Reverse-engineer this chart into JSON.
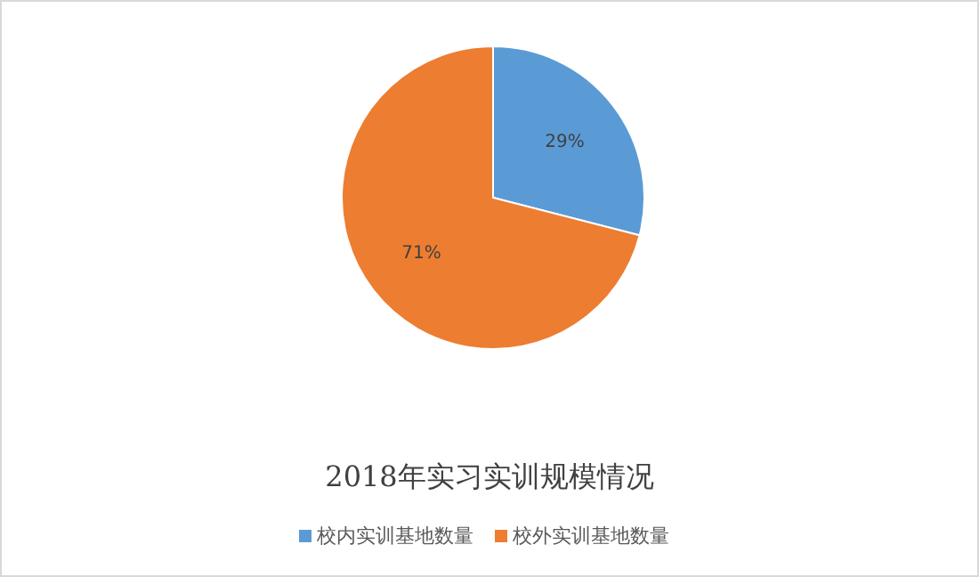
{
  "chart_data": {
    "type": "pie",
    "title": "2018年实习实训规模情况",
    "categories": [
      "校内实训基地数量",
      "校外实训基地数量"
    ],
    "values": [
      29,
      71
    ],
    "colors": [
      "#5b9bd5",
      "#ed7d31"
    ],
    "value_labels": [
      "29%",
      "71%"
    ],
    "legend": "bottom"
  }
}
